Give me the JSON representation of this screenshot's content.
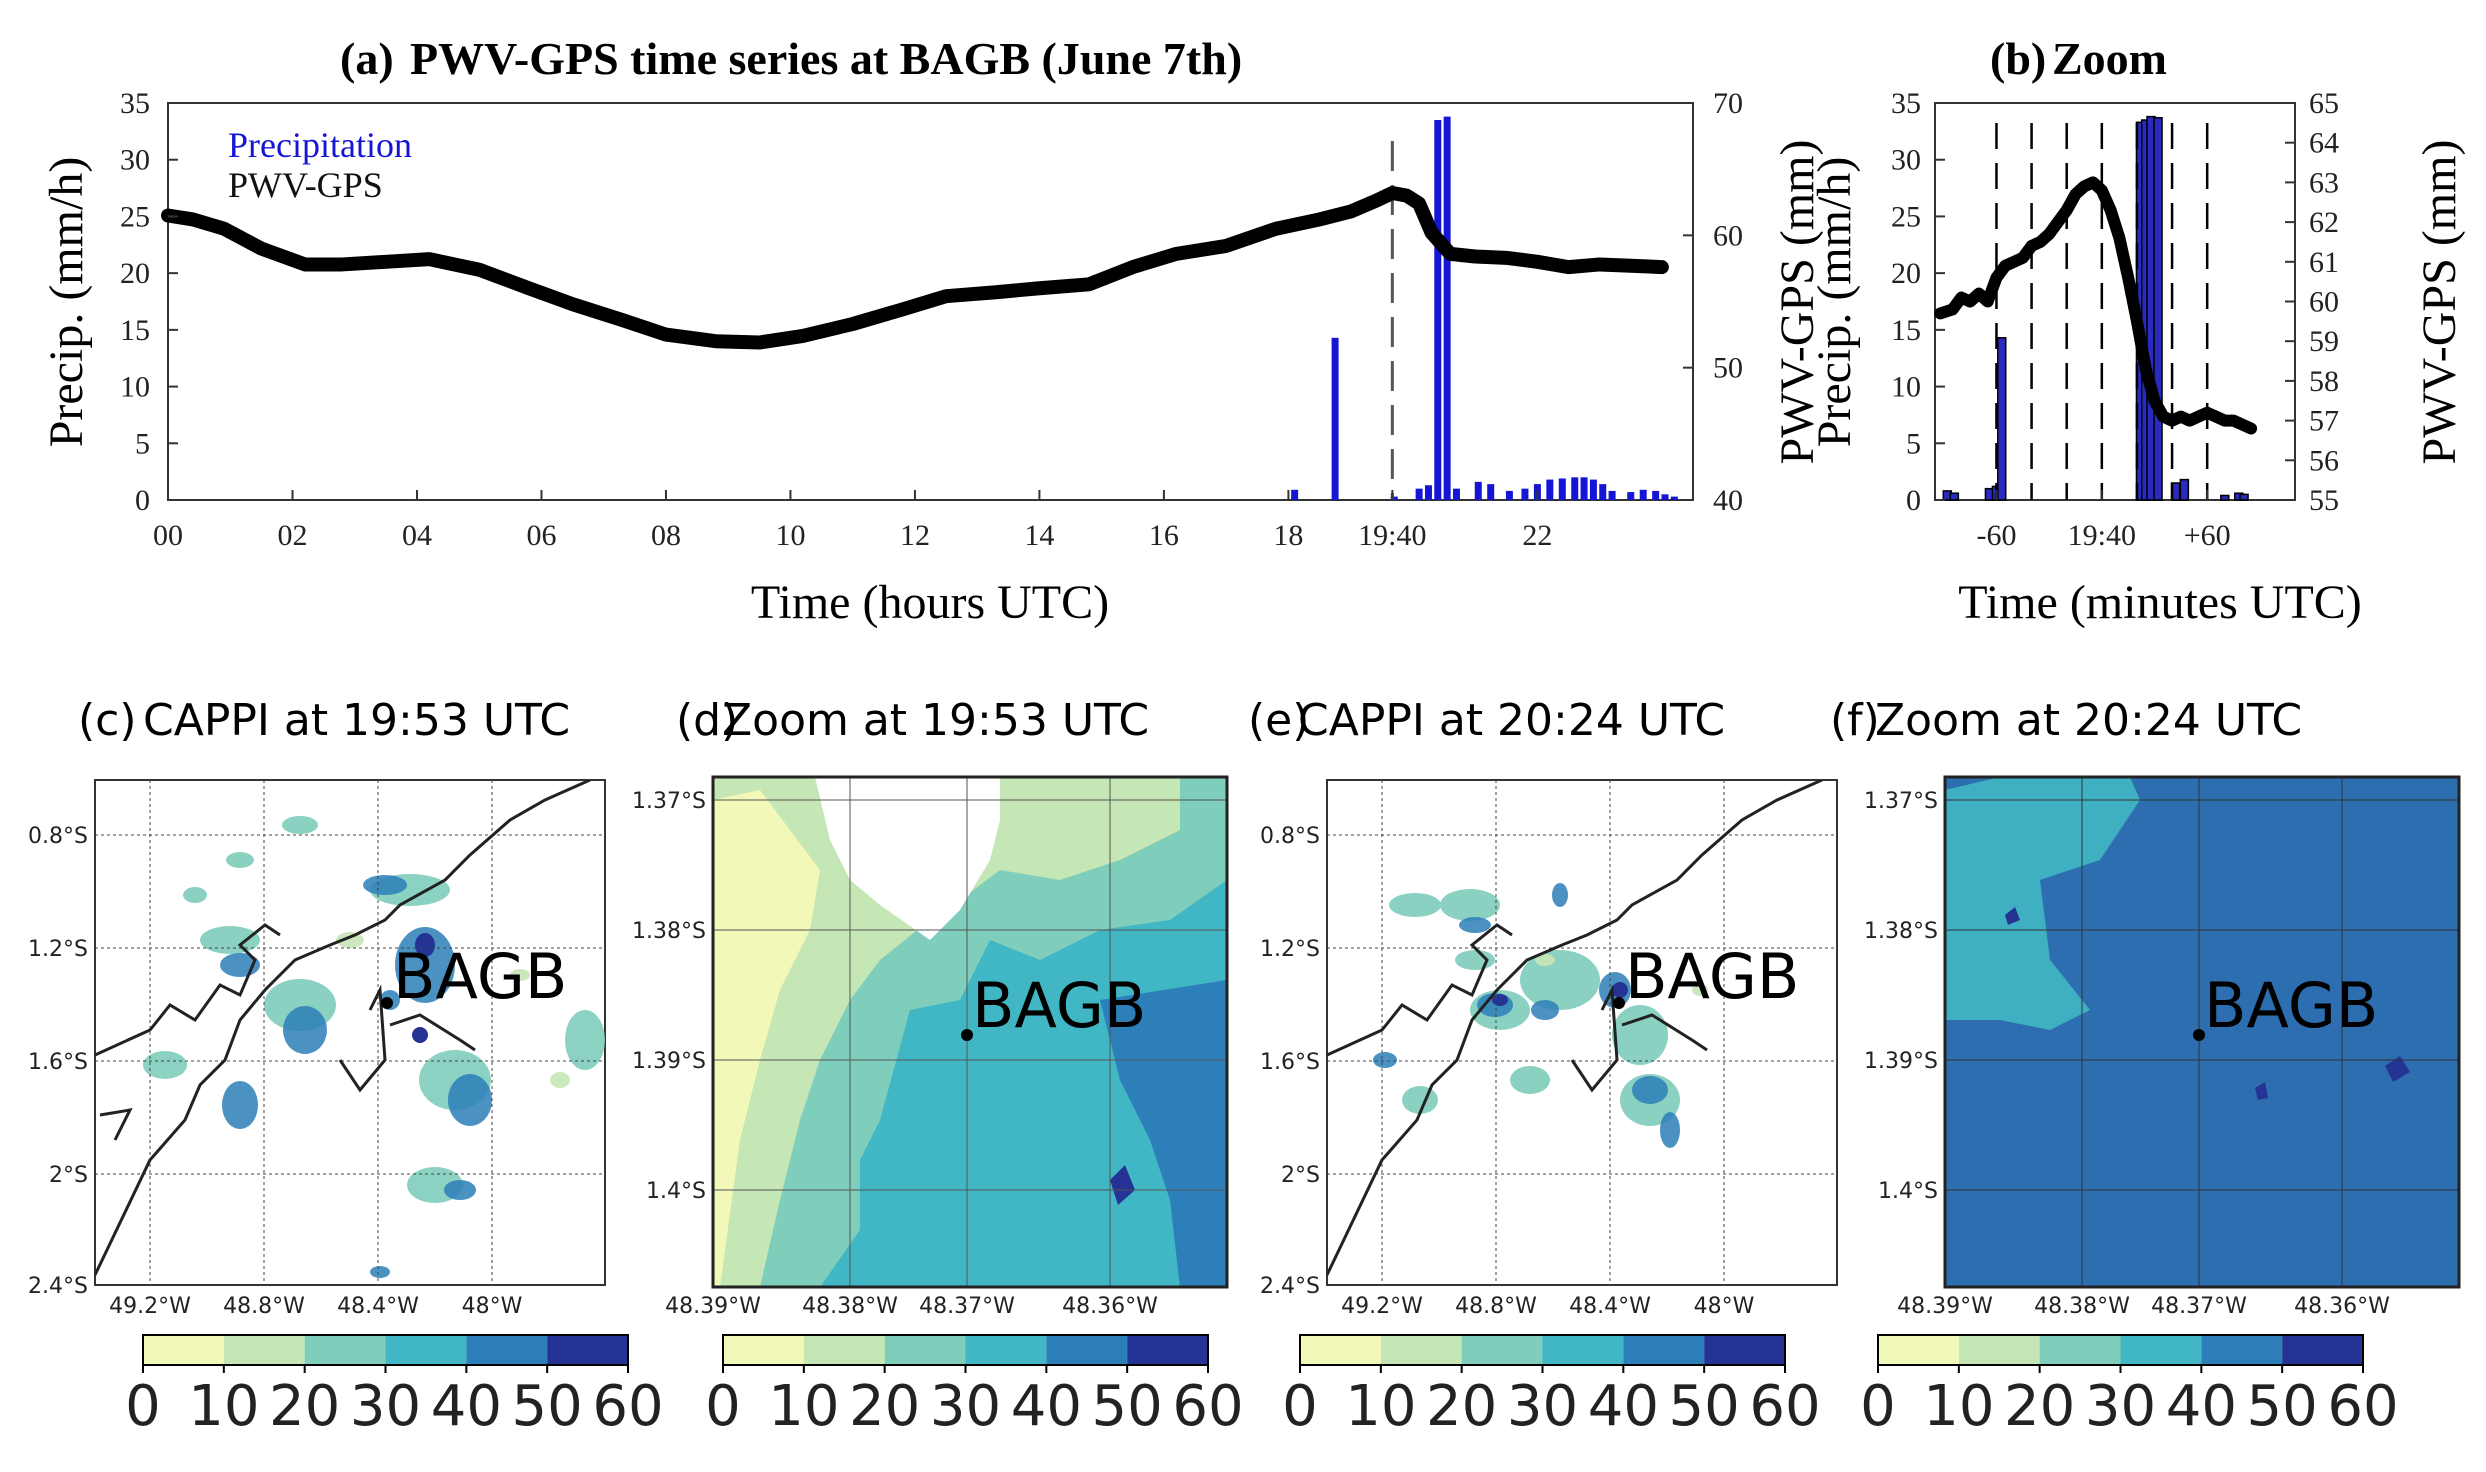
{
  "panel_a": {
    "label": "(a)",
    "title": "PWV-GPS time series at BAGB (June 7th)",
    "xlabel": "Time (hours UTC)",
    "ylabel_left": "Precip. (mm/h)",
    "ylabel_right": "PWV-GPS (mm)",
    "legend": [
      "Precipitation",
      "PWV-GPS"
    ],
    "x_ticks": [
      "00",
      "02",
      "04",
      "06",
      "08",
      "10",
      "12",
      "14",
      "16",
      "18",
      "19:40",
      "22"
    ],
    "y_left_ticks": [
      "0",
      "5",
      "10",
      "15",
      "20",
      "25",
      "30",
      "35"
    ],
    "y_right_ticks": [
      "40",
      "50",
      "60",
      "70"
    ]
  },
  "panel_b": {
    "label": "(b)",
    "title": "Zoom",
    "xlabel": "Time (minutes UTC)",
    "ylabel_left": "Precip. (mm/h)",
    "ylabel_right": "PWV-GPS (mm)",
    "x_ticks": [
      "-60",
      "19:40",
      "+60"
    ],
    "y_left_ticks": [
      "0",
      "5",
      "10",
      "15",
      "20",
      "25",
      "30",
      "35"
    ],
    "y_right_ticks": [
      "55",
      "56",
      "57",
      "58",
      "59",
      "60",
      "61",
      "62",
      "63",
      "64",
      "65"
    ]
  },
  "maps": [
    {
      "label": "(c)",
      "title": "CAPPI at 19:53 UTC",
      "station": "BAGB",
      "lat_ticks": [
        "0.8°S",
        "1.2°S",
        "1.6°S",
        "2°S",
        "2.4°S"
      ],
      "lon_ticks": [
        "49.2°W",
        "48.8°W",
        "48.4°W",
        "48°W"
      ]
    },
    {
      "label": "(d)",
      "title": "Zoom at 19:53 UTC",
      "station": "BAGB",
      "lat_ticks": [
        "1.37°S",
        "1.38°S",
        "1.39°S",
        "1.4°S"
      ],
      "lon_ticks": [
        "48.39°W",
        "48.38°W",
        "48.37°W",
        "48.36°W"
      ]
    },
    {
      "label": "(e)",
      "title": "CAPPI at 20:24 UTC",
      "station": "BAGB",
      "lat_ticks": [
        "0.8°S",
        "1.2°S",
        "1.6°S",
        "2°S",
        "2.4°S"
      ],
      "lon_ticks": [
        "49.2°W",
        "48.8°W",
        "48.4°W",
        "48°W"
      ]
    },
    {
      "label": "(f)",
      "title": "Zoom at 20:24 UTC",
      "station": "BAGB",
      "lat_ticks": [
        "1.37°S",
        "1.38°S",
        "1.39°S",
        "1.4°S"
      ],
      "lon_ticks": [
        "48.39°W",
        "48.38°W",
        "48.37°W",
        "48.36°W"
      ]
    }
  ],
  "colorbar": {
    "ticks": [
      "0",
      "10",
      "20",
      "30",
      "40",
      "50",
      "60"
    ],
    "colors": [
      "#f1f8b8",
      "#c5e6b5",
      "#7fcdbb",
      "#41b6c4",
      "#2c7fb8",
      "#253494"
    ]
  },
  "colors": {
    "precip": "#1515d6",
    "pwv": "#000000"
  },
  "chart_data": [
    {
      "type": "bar+line",
      "panel": "a",
      "x_unit": "hours UTC",
      "xlim": [
        0,
        24.5
      ],
      "ylim_left": [
        0,
        35
      ],
      "ylim_right": [
        40,
        70
      ],
      "marker_time": 19.67,
      "series": [
        {
          "name": "Precipitation",
          "axis": "left",
          "x": [
            18.1,
            18.75,
            19.7,
            20.1,
            20.25,
            20.4,
            20.55,
            20.7,
            21.05,
            21.25,
            21.55,
            21.8,
            22.0,
            22.2,
            22.4,
            22.6,
            22.75,
            22.9,
            23.05,
            23.2,
            23.5,
            23.7,
            23.9,
            24.05,
            24.2
          ],
          "values": [
            0.9,
            14.3,
            0.3,
            1.0,
            1.3,
            33.5,
            33.8,
            1.0,
            1.6,
            1.4,
            0.8,
            1.0,
            1.4,
            1.8,
            1.9,
            2.0,
            2.0,
            1.8,
            1.4,
            0.8,
            0.7,
            0.9,
            0.8,
            0.5,
            0.3
          ]
        },
        {
          "name": "PWV-GPS",
          "axis": "right",
          "x": [
            0,
            0.4,
            0.9,
            1.5,
            2.2,
            2.8,
            3.5,
            4.2,
            5.0,
            5.8,
            6.5,
            7.3,
            8.0,
            8.8,
            9.5,
            10.2,
            11.0,
            11.8,
            12.5,
            13.3,
            14.0,
            14.8,
            15.5,
            16.2,
            17.0,
            17.8,
            18.5,
            19.0,
            19.4,
            19.67,
            19.9,
            20.1,
            20.3,
            20.6,
            21.0,
            21.5,
            22.0,
            22.5,
            23.0,
            23.5,
            24.0
          ],
          "values": [
            61.5,
            61.2,
            60.5,
            59.0,
            57.8,
            57.8,
            58.0,
            58.2,
            57.4,
            56.0,
            54.8,
            53.6,
            52.5,
            52.0,
            51.9,
            52.4,
            53.3,
            54.4,
            55.4,
            55.7,
            56.0,
            56.3,
            57.6,
            58.6,
            59.2,
            60.5,
            61.2,
            61.8,
            62.6,
            63.2,
            63.0,
            62.4,
            60.2,
            58.6,
            58.4,
            58.3,
            58.0,
            57.6,
            57.8,
            57.7,
            57.6
          ]
        }
      ]
    },
    {
      "type": "bar+line",
      "panel": "b",
      "x_unit": "minutes relative to 19:40 UTC",
      "xlim": [
        -95,
        110
      ],
      "ylim_left": [
        0,
        35
      ],
      "ylim_right": [
        55,
        65
      ],
      "marker_times": [
        -60,
        -40,
        -20,
        0,
        20,
        40,
        60
      ],
      "series": [
        {
          "name": "Precipitation",
          "axis": "left",
          "x": [
            -88,
            -84,
            -64,
            -60,
            -57,
            22,
            25,
            28,
            32,
            42,
            47,
            70,
            78,
            81
          ],
          "values": [
            0.8,
            0.6,
            1.0,
            1.2,
            14.3,
            33.3,
            33.5,
            33.8,
            33.7,
            1.5,
            1.8,
            0.4,
            0.6,
            0.5
          ]
        },
        {
          "name": "PWV-GPS",
          "axis": "right",
          "x": [
            -92,
            -85,
            -80,
            -75,
            -70,
            -65,
            -60,
            -55,
            -50,
            -45,
            -40,
            -35,
            -30,
            -25,
            -20,
            -15,
            -10,
            -5,
            0,
            5,
            10,
            15,
            20,
            25,
            30,
            35,
            40,
            45,
            50,
            55,
            60,
            65,
            70,
            75,
            80,
            85
          ],
          "values": [
            59.7,
            59.8,
            60.1,
            60.0,
            60.2,
            60.0,
            60.6,
            60.9,
            61.0,
            61.1,
            61.4,
            61.5,
            61.7,
            62.0,
            62.3,
            62.7,
            62.9,
            63.0,
            62.8,
            62.3,
            61.6,
            60.6,
            59.5,
            58.3,
            57.5,
            57.1,
            57.0,
            57.1,
            57.0,
            57.1,
            57.2,
            57.1,
            57.0,
            57.0,
            56.9,
            56.8
          ]
        }
      ]
    }
  ]
}
